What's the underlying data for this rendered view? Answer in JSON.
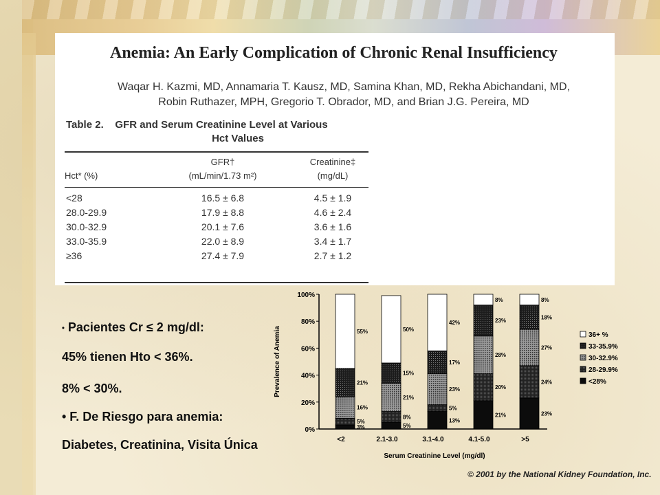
{
  "paper": {
    "title": "Anemia: An Early Complication of Chronic Renal Insufficiency",
    "authors_line1": "Waqar H. Kazmi, MD, Annamaria T. Kausz, MD, Samina Khan, MD, Rekha Abichandani, MD,",
    "authors_line2": "Robin Ruthazer, MPH, Gregorio T. Obrador, MD, and Brian J.G. Pereira, MD"
  },
  "table": {
    "label": "Table 2.",
    "title_line1": "GFR and Serum Creatinine Level at Various",
    "title_line2": "Hct Values",
    "col1_header": "Hct* (%)",
    "col2_header_line1": "GFR†",
    "col2_header_line2": "(mL/min/1.73 m²)",
    "col3_header_line1": "Creatinine‡",
    "col3_header_line2": "(mg/dL)",
    "rows": [
      {
        "hct": "<28",
        "gfr": "16.5 ± 6.8",
        "cr": "4.5 ± 1.9"
      },
      {
        "hct": "28.0-29.9",
        "gfr": "17.9 ± 8.8",
        "cr": "4.6 ± 2.4"
      },
      {
        "hct": "30.0-32.9",
        "gfr": "20.1 ± 7.6",
        "cr": "3.6 ± 1.6"
      },
      {
        "hct": "33.0-35.9",
        "gfr": "22.0 ± 8.9",
        "cr": "3.4 ± 1.7"
      },
      {
        "hct": "≥36",
        "gfr": "27.4 ± 7.9",
        "cr": "2.7 ± 1.2"
      }
    ]
  },
  "bullets": {
    "b1_mark": "•",
    "b1": "Pacientes  Cr ≤ 2 mg/dl:",
    "l2": "45%  tienen  Hto < 36%.",
    "l3": "8%  < 30%.",
    "b4": "• F. De  Riesgo  para anemia:",
    "l5": "Diabetes, Creatinina, Visita Única"
  },
  "copyright": "© 2001 by the National Kidney Foundation, Inc.",
  "chart_data": {
    "type": "bar",
    "stacked": true,
    "categories": [
      "<2",
      "2.1-3.0",
      "3.1-4.0",
      "4.1-5.0",
      ">5"
    ],
    "xlabel": "Serum Creatinine Level (mg/dl)",
    "ylabel": "Prevalence of Anemia",
    "ylim": [
      0,
      100
    ],
    "yticks": [
      "0%",
      "20%",
      "40%",
      "60%",
      "80%",
      "100%"
    ],
    "legend_position": "right",
    "series": [
      {
        "name": "<28%",
        "color": "#111111",
        "values": [
          3,
          5,
          13,
          21,
          23
        ],
        "labels": [
          "3%",
          "5%",
          "13%",
          "21%",
          "23%"
        ]
      },
      {
        "name": "28-29.9%",
        "color": "#2a2a2a",
        "values": [
          5,
          8,
          5,
          20,
          24
        ],
        "labels": [
          "5%",
          "8%",
          "5%",
          "20%",
          "24%"
        ]
      },
      {
        "name": "30-32.9%",
        "color": "#707070",
        "values": [
          16,
          21,
          23,
          28,
          27
        ],
        "labels": [
          "16%",
          "21%",
          "23%",
          "28%",
          "27%"
        ]
      },
      {
        "name": "33-35.9%",
        "color": "#3a3a3a",
        "values": [
          21,
          15,
          17,
          23,
          18
        ],
        "labels": [
          "21%",
          "15%",
          "17%",
          "23%",
          "18%"
        ]
      },
      {
        "name": "36+ %",
        "color": "#ffffff",
        "values": [
          55,
          50,
          42,
          8,
          8
        ],
        "labels": [
          "55%",
          "50%",
          "42%",
          "8%",
          "8%"
        ]
      }
    ]
  }
}
